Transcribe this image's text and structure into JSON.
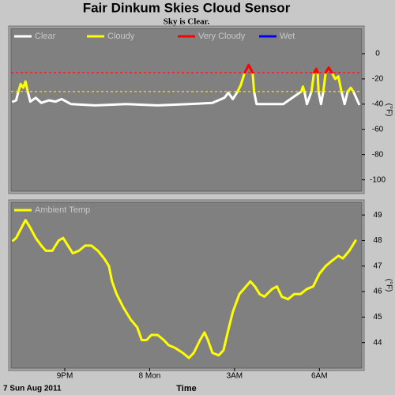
{
  "header": {
    "title": "Fair Dinkum Skies Cloud Sensor",
    "subtitle": "Sky is Clear."
  },
  "chart_data": [
    {
      "type": "line",
      "x": [
        19.17,
        19.28,
        19.36,
        19.44,
        19.53,
        19.61,
        19.69,
        19.78,
        19.97,
        20.17,
        20.44,
        20.67,
        20.89,
        21.22,
        22.06,
        23.17,
        24.28,
        25.39,
        26.22,
        26.64,
        26.78,
        26.94,
        27.11,
        27.22,
        27.36,
        27.5,
        27.64,
        27.69,
        27.78,
        28.72,
        29.36,
        29.42,
        29.47,
        29.56,
        29.72,
        29.81,
        29.89,
        29.94,
        29.97,
        30.06,
        30.14,
        30.22,
        30.33,
        30.44,
        30.56,
        30.67,
        30.78,
        30.89,
        31.0,
        31.11,
        31.2,
        31.4
      ],
      "series": [
        {
          "name": "Clear",
          "color": "#ffffff",
          "values": [
            -38,
            -37,
            -30,
            null,
            null,
            null,
            -30,
            -38,
            -35,
            -39,
            -37,
            -38,
            -36,
            -40,
            -41,
            -40,
            -41,
            -40,
            -39,
            -35,
            -31,
            -36,
            -30,
            null,
            null,
            null,
            null,
            -30,
            -40,
            -40,
            -30,
            null,
            -30,
            -40,
            -30,
            null,
            null,
            null,
            -30,
            -40,
            -30,
            null,
            null,
            null,
            null,
            null,
            -30,
            -40,
            -30,
            null,
            -30,
            -40
          ]
        },
        {
          "name": "Cloudy",
          "color": "#ffff00",
          "values": [
            null,
            null,
            -30,
            -24,
            -27,
            -22,
            -30,
            null,
            null,
            null,
            null,
            null,
            null,
            null,
            null,
            null,
            null,
            null,
            null,
            null,
            null,
            null,
            -30,
            -25,
            -15,
            null,
            -15,
            -30,
            null,
            null,
            -30,
            -26,
            -30,
            null,
            -30,
            -15,
            null,
            -15,
            -30,
            null,
            -30,
            -15,
            null,
            -15,
            -20,
            -18,
            -30,
            null,
            -30,
            -27,
            -30,
            null
          ]
        },
        {
          "name": "Very Cloudy",
          "color": "#ff0000",
          "values": [
            null,
            null,
            null,
            null,
            null,
            null,
            null,
            null,
            null,
            null,
            null,
            null,
            null,
            null,
            null,
            null,
            null,
            null,
            null,
            null,
            null,
            null,
            null,
            null,
            -15,
            -9,
            -15,
            null,
            null,
            null,
            null,
            null,
            null,
            null,
            null,
            -15,
            -12,
            -15,
            null,
            null,
            null,
            -15,
            -11,
            -15,
            null,
            null,
            null,
            null,
            null,
            null,
            null,
            null
          ]
        },
        {
          "name": "Wet",
          "color": "#0000ff",
          "values": [
            null,
            null,
            null,
            null,
            null,
            null,
            null,
            null,
            null,
            null,
            null,
            null,
            null,
            null,
            null,
            null,
            null,
            null,
            null,
            null,
            null,
            null,
            null,
            null,
            null,
            null,
            null,
            null,
            null,
            null,
            null,
            null,
            null,
            null,
            null,
            null,
            null,
            null,
            null,
            null,
            null,
            null,
            null,
            null,
            null,
            null,
            null,
            null,
            null,
            null,
            null,
            null
          ]
        }
      ],
      "thresholds": [
        {
          "value": -15,
          "color": "#ff0000"
        },
        {
          "value": -30,
          "color": "#ffff00"
        }
      ],
      "xlim": [
        19.1,
        31.5
      ],
      "ylim": [
        -109,
        20
      ],
      "yticks": [
        0,
        -20,
        -40,
        -60,
        -80,
        -100
      ],
      "y_label": "(°F)"
    },
    {
      "type": "line",
      "x": [
        19.17,
        19.28,
        19.42,
        19.61,
        19.78,
        19.97,
        20.17,
        20.33,
        20.56,
        20.78,
        20.94,
        21.11,
        21.28,
        21.5,
        21.72,
        21.94,
        22.17,
        22.39,
        22.56,
        22.67,
        22.83,
        23.06,
        23.33,
        23.56,
        23.72,
        23.89,
        24.06,
        24.28,
        24.5,
        24.67,
        24.89,
        25.17,
        25.39,
        25.56,
        25.78,
        25.94,
        26.06,
        26.22,
        26.44,
        26.61,
        26.78,
        26.94,
        27.17,
        27.33,
        27.56,
        27.72,
        27.89,
        28.06,
        28.33,
        28.5,
        28.67,
        28.89,
        29.11,
        29.33,
        29.56,
        29.78,
        30.0,
        30.22,
        30.44,
        30.67,
        30.83,
        31.06,
        31.28
      ],
      "series": [
        {
          "name": "Ambient Temp",
          "color": "#ffff00",
          "values": [
            48.0,
            48.1,
            48.4,
            48.8,
            48.5,
            48.1,
            47.8,
            47.6,
            47.6,
            48.0,
            48.1,
            47.8,
            47.5,
            47.6,
            47.8,
            47.8,
            47.6,
            47.3,
            47.0,
            46.4,
            45.9,
            45.4,
            44.9,
            44.6,
            44.1,
            44.1,
            44.3,
            44.3,
            44.1,
            43.9,
            43.8,
            43.6,
            43.4,
            43.6,
            44.1,
            44.4,
            44.1,
            43.6,
            43.5,
            43.7,
            44.5,
            45.2,
            45.9,
            46.1,
            46.4,
            46.2,
            45.9,
            45.8,
            46.1,
            46.2,
            45.8,
            45.7,
            45.9,
            45.9,
            46.1,
            46.2,
            46.7,
            47.0,
            47.2,
            47.4,
            47.3,
            47.6,
            48.0
          ]
        }
      ],
      "xlim": [
        19.1,
        31.5
      ],
      "xticks": [
        {
          "value": 21,
          "label": "9PM"
        },
        {
          "value": 24,
          "label": "8 Mon"
        },
        {
          "value": 27,
          "label": "3AM"
        },
        {
          "value": 30,
          "label": "6AM"
        }
      ],
      "ylim": [
        43,
        49.5
      ],
      "yticks": [
        49,
        48,
        47,
        46,
        45,
        44
      ],
      "y_label": "(°F)",
      "x_label": "Time",
      "date_label": "7 Sun Aug 2011"
    }
  ]
}
